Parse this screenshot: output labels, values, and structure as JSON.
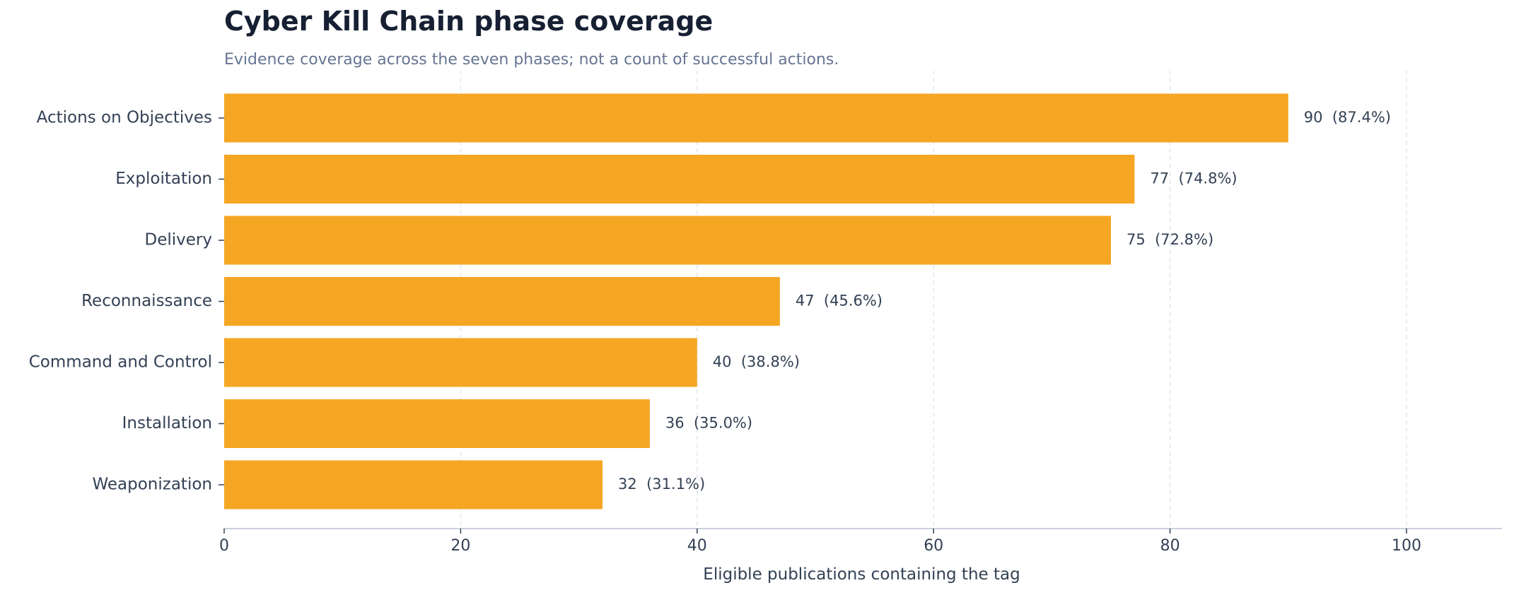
{
  "chart_data": {
    "type": "bar",
    "orientation": "horizontal",
    "title": "Cyber Kill Chain phase coverage",
    "subtitle": "Evidence coverage across the seven phases; not a count of successful actions.",
    "xlabel": "Eligible publications containing the tag",
    "ylabel": "",
    "xlim": [
      0,
      108
    ],
    "xticks": [
      0,
      20,
      40,
      60,
      80,
      100
    ],
    "grid": "vertical dashed",
    "categories": [
      "Actions on Objectives",
      "Exploitation",
      "Delivery",
      "Reconnaissance",
      "Command and Control",
      "Installation",
      "Weaponization"
    ],
    "values": [
      90,
      77,
      75,
      47,
      40,
      36,
      32
    ],
    "data_labels": [
      "90  (87.4%)",
      "77  (74.8%)",
      "75  (72.8%)",
      "47  (45.6%)",
      "40  (38.8%)",
      "36  (35.0%)",
      "32  (31.1%)"
    ],
    "colors": {
      "bar": "#f5a623",
      "text": "#334155",
      "title": "#172033",
      "subtitle": "#667592",
      "grid": "#e2e6ec",
      "axis": "#b8c2d0"
    }
  }
}
